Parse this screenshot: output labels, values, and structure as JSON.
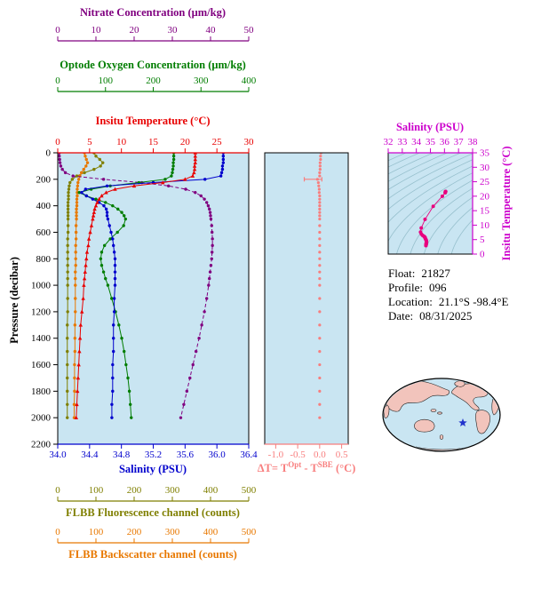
{
  "figure": {
    "bg": "#ffffff",
    "plot_bg": "#c9e5f2"
  },
  "axes": {
    "nitrate": {
      "title": "Nitrate Concentration (μm/kg)",
      "ticks": [
        "0",
        "10",
        "20",
        "30",
        "40",
        "50"
      ],
      "color": "#800080"
    },
    "oxygen": {
      "title": "Optode Oxygen Concentration (μm/kg)",
      "ticks": [
        "0",
        "100",
        "200",
        "300",
        "400"
      ],
      "color": "#007d00"
    },
    "temperature": {
      "title": "Insitu Temperature (°C)",
      "ticks": [
        "0",
        "5",
        "10",
        "15",
        "20",
        "25",
        "30"
      ],
      "color": "#e80000"
    },
    "pressure": {
      "title": "Pressure (decibar)",
      "ticks": [
        "0",
        "200",
        "400",
        "600",
        "800",
        "1000",
        "1200",
        "1400",
        "1600",
        "1800",
        "2000",
        "2200"
      ],
      "color": "#000000"
    },
    "salinity": {
      "title": "Salinity (PSU)",
      "ticks": [
        "34.0",
        "34.4",
        "34.8",
        "35.2",
        "35.6",
        "36.0",
        "36.4"
      ],
      "color": "#0000cd"
    },
    "fluorescence": {
      "title": "FLBB Fluorescence channel (counts)",
      "ticks": [
        "0",
        "100",
        "200",
        "300",
        "400",
        "500"
      ],
      "color": "#7f7f00"
    },
    "backscatter": {
      "title": "FLBB Backscatter channel (counts)",
      "ticks": [
        "0",
        "100",
        "200",
        "300",
        "400",
        "500"
      ],
      "color": "#e87800"
    },
    "delta_t": {
      "title_parts": {
        "pre": "ΔT= T",
        "sup1": "Opt",
        "mid": " - T",
        "sup2": "SBE",
        "post": " (°C)"
      },
      "ticks": [
        "-1.0",
        "-0.5",
        "0.0",
        "0.5"
      ],
      "color": "#f87e7e"
    },
    "ts_salinity": {
      "title": "Salinity (PSU)",
      "ticks": [
        "32",
        "33",
        "34",
        "35",
        "36",
        "37",
        "38"
      ],
      "color": "#cc00cc"
    },
    "ts_temperature": {
      "title": "Insitu Temperature (°C)",
      "ticks": [
        "0",
        "5",
        "10",
        "15",
        "20",
        "25",
        "30",
        "35"
      ],
      "color": "#cc00cc"
    }
  },
  "info": {
    "lines": [
      {
        "label": "Float:",
        "value": "21827"
      },
      {
        "label": "Profile:",
        "value": "096"
      },
      {
        "label": "Location:",
        "value": "21.1°S -98.4°E"
      },
      {
        "label": "Date:",
        "value": "08/31/2025"
      }
    ]
  },
  "map": {
    "ocean_color": "#c9e5f2",
    "land_color": "#f2c4bc",
    "star_color": "#2233cc"
  },
  "chart_data": [
    {
      "type": "line",
      "id": "main_profiles",
      "ylabel": "Pressure (decibar)",
      "ylim": [
        0,
        2200
      ],
      "y_inverted": true,
      "grid": false,
      "pressure": [
        0,
        25,
        50,
        75,
        100,
        125,
        150,
        175,
        200,
        225,
        250,
        275,
        300,
        325,
        350,
        375,
        400,
        425,
        450,
        475,
        500,
        550,
        600,
        650,
        700,
        750,
        800,
        850,
        900,
        950,
        1000,
        1100,
        1200,
        1300,
        1400,
        1500,
        1600,
        1700,
        1800,
        1900,
        2000
      ],
      "series": [
        {
          "id": "fluorescence",
          "name": "FLBB Fluorescence channel (counts)",
          "color": "#7f7f00",
          "xlim": [
            0,
            500
          ],
          "values": [
            95,
            100,
            110,
            118,
            112,
            95,
            70,
            50,
            38,
            32,
            30,
            29,
            28,
            28,
            28,
            27,
            27,
            27,
            27,
            27,
            27,
            27,
            27,
            26,
            26,
            26,
            26,
            26,
            26,
            26,
            26,
            26,
            26,
            25,
            25,
            25,
            25,
            25,
            25,
            25,
            25
          ]
        },
        {
          "id": "backscatter",
          "name": "FLBB Backscatter channel (counts)",
          "color": "#e87800",
          "xlim": [
            0,
            500
          ],
          "values": [
            70,
            72,
            75,
            78,
            74,
            68,
            62,
            58,
            55,
            53,
            52,
            51,
            51,
            51,
            50,
            50,
            50,
            49,
            49,
            49,
            49,
            48,
            48,
            48,
            47,
            47,
            47,
            47,
            46,
            46,
            46,
            46,
            46,
            45,
            45,
            45,
            44,
            44,
            44,
            43,
            43
          ]
        },
        {
          "id": "nitrate",
          "name": "Nitrate Concentration (μm/kg)",
          "color": "#800080",
          "xlim": [
            0,
            50
          ],
          "dash": "4 2.5",
          "values": [
            0.4,
            0.4,
            0.5,
            0.6,
            0.8,
            1.2,
            2.0,
            4.0,
            12,
            22,
            29,
            33.5,
            36,
            37.5,
            38.4,
            39,
            39.4,
            39.7,
            39.9,
            40,
            40.1,
            40.3,
            40.4,
            40.5,
            40.5,
            40.4,
            40.3,
            40.1,
            39.9,
            39.7,
            39.5,
            39,
            38.4,
            37.7,
            37,
            36.2,
            35.4,
            34.6,
            33.8,
            33,
            32.2
          ]
        },
        {
          "id": "oxygen",
          "name": "Optode Oxygen Concentration (μm/kg)",
          "color": "#007d00",
          "xlim": [
            0,
            400
          ],
          "values": [
            243,
            243,
            243,
            242,
            242,
            241,
            240,
            238,
            225,
            170,
            110,
            70,
            45,
            60,
            80,
            100,
            115,
            126,
            134,
            139,
            142,
            138,
            125,
            110,
            98,
            92,
            90,
            92,
            96,
            100,
            105,
            113,
            121,
            128,
            134,
            139,
            143,
            147,
            150,
            152,
            154
          ]
        },
        {
          "id": "salinity",
          "name": "Salinity (PSU)",
          "color": "#0000cd",
          "xlim": [
            34.0,
            36.4
          ],
          "values": [
            36.08,
            36.08,
            36.08,
            36.08,
            36.07,
            36.07,
            36.06,
            36.05,
            35.85,
            35.2,
            34.62,
            34.35,
            34.3,
            34.36,
            34.44,
            34.52,
            34.58,
            34.61,
            34.62,
            34.62,
            34.63,
            34.65,
            34.67,
            34.69,
            34.7,
            34.71,
            34.72,
            34.72,
            34.72,
            34.72,
            34.72,
            34.71,
            34.71,
            34.7,
            34.7,
            34.7,
            34.69,
            34.69,
            34.69,
            34.68,
            34.68
          ]
        },
        {
          "id": "temperature",
          "name": "Insitu Temperature (°C)",
          "color": "#e80000",
          "xlim": [
            0,
            30
          ],
          "marker": "triangle",
          "values": [
            21.6,
            21.6,
            21.6,
            21.6,
            21.5,
            21.5,
            21.4,
            21.2,
            20.0,
            16.5,
            12.0,
            9.0,
            7.6,
            6.9,
            6.5,
            6.2,
            6.0,
            5.8,
            5.7,
            5.6,
            5.5,
            5.3,
            5.1,
            4.9,
            4.8,
            4.6,
            4.5,
            4.4,
            4.3,
            4.2,
            4.1,
            4.0,
            3.8,
            3.6,
            3.5,
            3.4,
            3.3,
            3.2,
            3.1,
            3.0,
            2.9
          ]
        }
      ]
    },
    {
      "type": "scatter",
      "id": "delta_t_profile",
      "xlabel": "ΔT= TOpt - TSBE (°C)",
      "color": "#f87e7e",
      "xlim": [
        -1.25,
        0.65
      ],
      "xticks": [
        -1.0,
        -0.5,
        0.0,
        0.5
      ],
      "pressure_shared_with": "main_profiles",
      "values": [
        0.03,
        0.02,
        0.02,
        0.01,
        0.01,
        0.01,
        0.0,
        0.0,
        -0.05,
        -0.03,
        -0.02,
        -0.01,
        -0.01,
        0.0,
        0.0,
        0.0,
        0.0,
        0.0,
        0.0,
        0.0,
        0.0,
        0.0,
        0.0,
        0.0,
        0.0,
        0.0,
        0.0,
        0.0,
        0.0,
        0.0,
        0.0,
        0.0,
        0.0,
        0.0,
        0.0,
        0.0,
        0.0,
        0.0,
        0.0,
        0.0,
        0.0
      ],
      "errorbar": {
        "pressure": 200,
        "x0": -0.35,
        "x1": 0.05
      }
    },
    {
      "type": "scatter",
      "id": "ts_diagram",
      "xlabel": "Salinity (PSU)",
      "ylabel": "Insitu Temperature (°C)",
      "color": "#e8007e",
      "xlim": [
        32,
        38
      ],
      "ylim": [
        0,
        35
      ],
      "points_source": "salinity vs temperature pairs of main_profiles",
      "contours": "sigma-theta isopycnals"
    }
  ]
}
